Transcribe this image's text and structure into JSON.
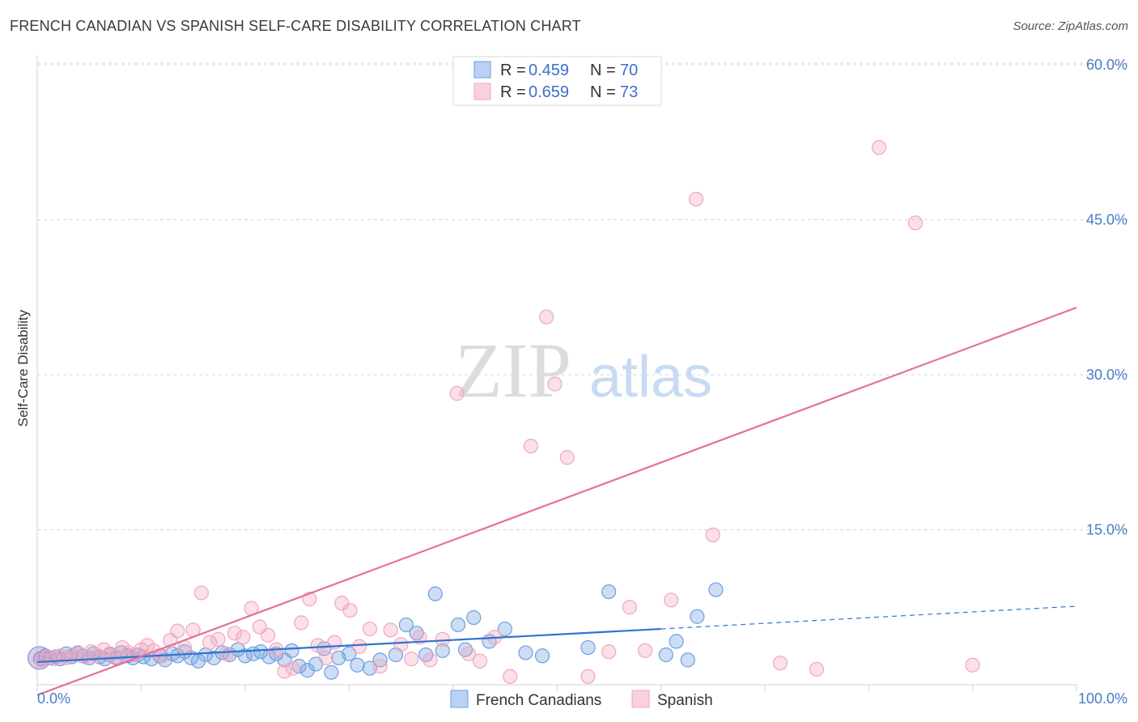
{
  "title": "FRENCH CANADIAN VS SPANISH SELF-CARE DISABILITY CORRELATION CHART",
  "source": "Source: ZipAtlas.com",
  "watermark": {
    "zip": "ZIP",
    "atlas": "atlas"
  },
  "colors": {
    "blue": "#6f9fe0",
    "blue_line": "#2f72d0",
    "pink": "#f2a6be",
    "pink_line": "#e2719a",
    "grid": "#d8d8d8"
  },
  "legend": {
    "r_label": "R = ",
    "n_label": "N = ",
    "rows": [
      {
        "r": "0.459",
        "n": "70"
      },
      {
        "r": "0.659",
        "n": "73"
      }
    ]
  },
  "chart_data": {
    "type": "scatter",
    "title": "FRENCH CANADIAN VS SPANISH SELF-CARE DISABILITY CORRELATION CHART",
    "xlabel": "",
    "ylabel": "Self-Care Disability",
    "xlim": [
      0,
      100
    ],
    "ylim": [
      0,
      65
    ],
    "x_tick_labels": [
      "0.0%",
      "100.0%"
    ],
    "y_ticks": [
      15,
      30,
      45,
      60
    ],
    "y_tick_labels": [
      "15.0%",
      "30.0%",
      "45.0%",
      "60.0%"
    ],
    "grid": true,
    "legend_placement": "top-center",
    "series": [
      {
        "name": "French Canadians",
        "r": 0.459,
        "n": 70,
        "trend": {
          "x0": 0,
          "y0": 2.2,
          "x1": 60,
          "y1": 5.4,
          "dash_x1": 100,
          "dash_y1": 7.6
        },
        "points": [
          [
            0.3,
            2.5
          ],
          [
            0.8,
            2.8
          ],
          [
            1.2,
            2.6
          ],
          [
            1.8,
            2.7
          ],
          [
            2.2,
            2.5
          ],
          [
            2.8,
            3.0
          ],
          [
            3.3,
            2.7
          ],
          [
            3.9,
            3.1
          ],
          [
            4.4,
            2.8
          ],
          [
            5.0,
            2.6
          ],
          [
            5.4,
            3.0
          ],
          [
            6.0,
            2.7
          ],
          [
            6.5,
            2.5
          ],
          [
            7.0,
            2.9
          ],
          [
            7.6,
            2.6
          ],
          [
            8.1,
            3.1
          ],
          [
            8.7,
            2.8
          ],
          [
            9.2,
            2.6
          ],
          [
            9.7,
            2.9
          ],
          [
            10.2,
            2.7
          ],
          [
            11.0,
            2.5
          ],
          [
            11.8,
            2.8
          ],
          [
            12.3,
            2.4
          ],
          [
            13.0,
            3.0
          ],
          [
            13.5,
            2.8
          ],
          [
            14.2,
            3.2
          ],
          [
            14.8,
            2.6
          ],
          [
            15.5,
            2.3
          ],
          [
            16.2,
            2.9
          ],
          [
            17.0,
            2.6
          ],
          [
            17.8,
            3.1
          ],
          [
            18.5,
            2.9
          ],
          [
            19.3,
            3.4
          ],
          [
            20.0,
            2.8
          ],
          [
            20.8,
            3.0
          ],
          [
            21.5,
            3.2
          ],
          [
            22.3,
            2.7
          ],
          [
            23.0,
            3.0
          ],
          [
            23.8,
            2.4
          ],
          [
            24.5,
            3.3
          ],
          [
            25.2,
            1.8
          ],
          [
            26.0,
            1.4
          ],
          [
            26.8,
            2.0
          ],
          [
            27.6,
            3.5
          ],
          [
            28.3,
            1.2
          ],
          [
            29.0,
            2.6
          ],
          [
            30.0,
            3.0
          ],
          [
            30.8,
            1.9
          ],
          [
            32.0,
            1.6
          ],
          [
            33.0,
            2.4
          ],
          [
            34.5,
            2.9
          ],
          [
            35.5,
            5.8
          ],
          [
            36.5,
            5.0
          ],
          [
            37.4,
            2.9
          ],
          [
            38.3,
            8.8
          ],
          [
            39.0,
            3.3
          ],
          [
            40.5,
            5.8
          ],
          [
            41.2,
            3.4
          ],
          [
            42.0,
            6.5
          ],
          [
            43.5,
            4.2
          ],
          [
            45.0,
            5.4
          ],
          [
            47.0,
            3.1
          ],
          [
            48.6,
            2.8
          ],
          [
            53.0,
            3.6
          ],
          [
            55.0,
            9.0
          ],
          [
            60.5,
            2.9
          ],
          [
            61.5,
            4.2
          ],
          [
            62.6,
            2.4
          ],
          [
            63.5,
            6.6
          ],
          [
            65.3,
            9.2
          ]
        ]
      },
      {
        "name": "Spanish",
        "r": 0.659,
        "n": 73,
        "trend": {
          "x0": 0,
          "y0": -1.0,
          "x1": 100,
          "y1": 36.5
        },
        "points": [
          [
            0.4,
            2.4
          ],
          [
            1.0,
            2.7
          ],
          [
            1.6,
            2.5
          ],
          [
            2.2,
            2.8
          ],
          [
            2.8,
            2.6
          ],
          [
            3.4,
            2.9
          ],
          [
            4.0,
            3.0
          ],
          [
            4.6,
            2.7
          ],
          [
            5.2,
            3.2
          ],
          [
            5.8,
            2.8
          ],
          [
            6.4,
            3.4
          ],
          [
            7.0,
            3.0
          ],
          [
            7.6,
            2.7
          ],
          [
            8.2,
            3.6
          ],
          [
            8.8,
            3.1
          ],
          [
            9.4,
            2.9
          ],
          [
            10.0,
            3.4
          ],
          [
            10.6,
            3.8
          ],
          [
            11.2,
            3.3
          ],
          [
            12.0,
            2.8
          ],
          [
            12.8,
            4.3
          ],
          [
            13.5,
            5.2
          ],
          [
            14.2,
            3.6
          ],
          [
            15.0,
            5.3
          ],
          [
            15.8,
            8.9
          ],
          [
            16.6,
            4.1
          ],
          [
            17.4,
            4.4
          ],
          [
            18.2,
            3.0
          ],
          [
            19.0,
            5.0
          ],
          [
            19.8,
            4.6
          ],
          [
            20.6,
            7.4
          ],
          [
            21.4,
            5.6
          ],
          [
            22.2,
            4.8
          ],
          [
            23.0,
            3.4
          ],
          [
            23.8,
            1.3
          ],
          [
            24.6,
            1.6
          ],
          [
            25.4,
            6.0
          ],
          [
            26.2,
            8.3
          ],
          [
            27.0,
            3.8
          ],
          [
            27.8,
            2.6
          ],
          [
            28.6,
            4.1
          ],
          [
            29.3,
            7.9
          ],
          [
            30.1,
            7.2
          ],
          [
            31.0,
            3.7
          ],
          [
            32.0,
            5.4
          ],
          [
            33.0,
            1.8
          ],
          [
            34.0,
            5.3
          ],
          [
            35.0,
            3.9
          ],
          [
            36.0,
            2.5
          ],
          [
            36.8,
            4.6
          ],
          [
            37.8,
            2.4
          ],
          [
            39.0,
            4.4
          ],
          [
            40.4,
            28.2
          ],
          [
            41.5,
            3.0
          ],
          [
            42.6,
            2.3
          ],
          [
            44.0,
            4.6
          ],
          [
            45.5,
            0.8
          ],
          [
            47.5,
            23.1
          ],
          [
            49.0,
            35.6
          ],
          [
            49.8,
            29.1
          ],
          [
            51.0,
            22.0
          ],
          [
            53.0,
            0.8
          ],
          [
            55.0,
            3.2
          ],
          [
            57.0,
            7.5
          ],
          [
            58.5,
            3.3
          ],
          [
            61.0,
            8.2
          ],
          [
            63.4,
            47.0
          ],
          [
            65.0,
            14.5
          ],
          [
            71.5,
            2.1
          ],
          [
            75.0,
            1.5
          ],
          [
            81.0,
            52.0
          ],
          [
            84.5,
            44.7
          ],
          [
            90.0,
            1.9
          ]
        ]
      }
    ]
  }
}
